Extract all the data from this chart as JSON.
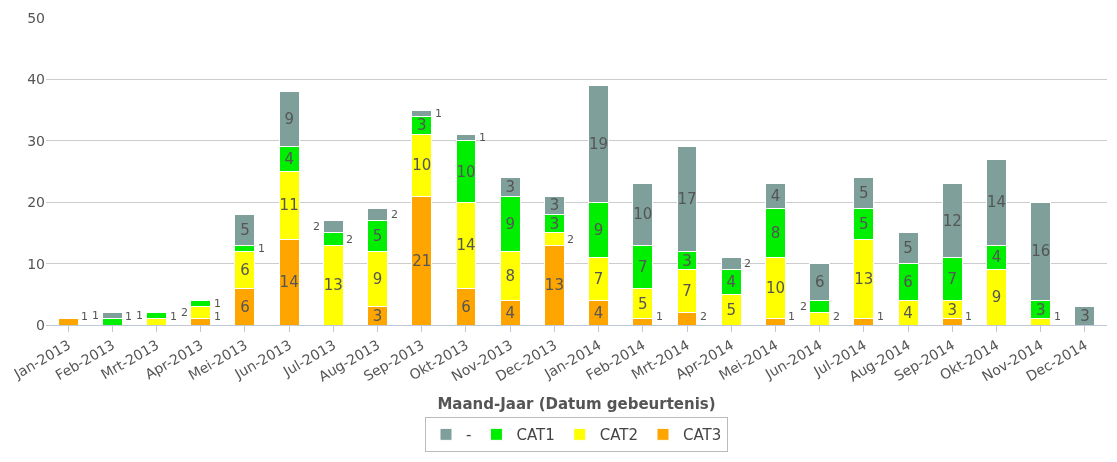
{
  "chart_data": {
    "type": "bar",
    "stacked": true,
    "data_labels": true,
    "xlabel": "Maand-Jaar (Datum gebeurtenis)",
    "categories": [
      "Jan-2013",
      "Feb-2013",
      "Mrt-2013",
      "Apr-2013",
      "Mei-2013",
      "Jun-2013",
      "Jul-2013",
      "Aug-2013",
      "Sep-2013",
      "Okt-2013",
      "Nov-2013",
      "Dec-2013",
      "Jan-2014",
      "Feb-2014",
      "Mrt-2014",
      "Apr-2014",
      "Mei-2014",
      "Jun-2014",
      "Jul-2014",
      "Aug-2014",
      "Sep-2014",
      "Okt-2014",
      "Nov-2014",
      "Dec-2014"
    ],
    "series": [
      {
        "name": "CAT3",
        "color": "#ffa500",
        "values": [
          1,
          null,
          null,
          1,
          6,
          14,
          null,
          3,
          21,
          6,
          4,
          13,
          4,
          1,
          2,
          null,
          1,
          null,
          1,
          null,
          1,
          null,
          null,
          null
        ]
      },
      {
        "name": "CAT2",
        "color": "#ffff00",
        "values": [
          null,
          null,
          1,
          2,
          6,
          11,
          13,
          9,
          10,
          14,
          8,
          2,
          7,
          5,
          7,
          5,
          10,
          2,
          13,
          4,
          3,
          9,
          1,
          null
        ]
      },
      {
        "name": "CAT1",
        "color": "#00ee00",
        "values": [
          null,
          1,
          1,
          1,
          1,
          4,
          2,
          5,
          3,
          10,
          9,
          3,
          9,
          7,
          3,
          4,
          8,
          2,
          5,
          6,
          7,
          4,
          3,
          null
        ]
      },
      {
        "name": "-",
        "color": "#7f9f9a",
        "values": [
          null,
          1,
          null,
          null,
          5,
          9,
          2,
          2,
          1,
          1,
          3,
          3,
          19,
          10,
          17,
          2,
          4,
          6,
          5,
          5,
          12,
          14,
          16,
          3
        ]
      }
    ],
    "ylim": [
      0,
      50
    ],
    "yticks": [
      0,
      10,
      20,
      30,
      40,
      50
    ],
    "grid": "y",
    "legend": "bottom"
  }
}
